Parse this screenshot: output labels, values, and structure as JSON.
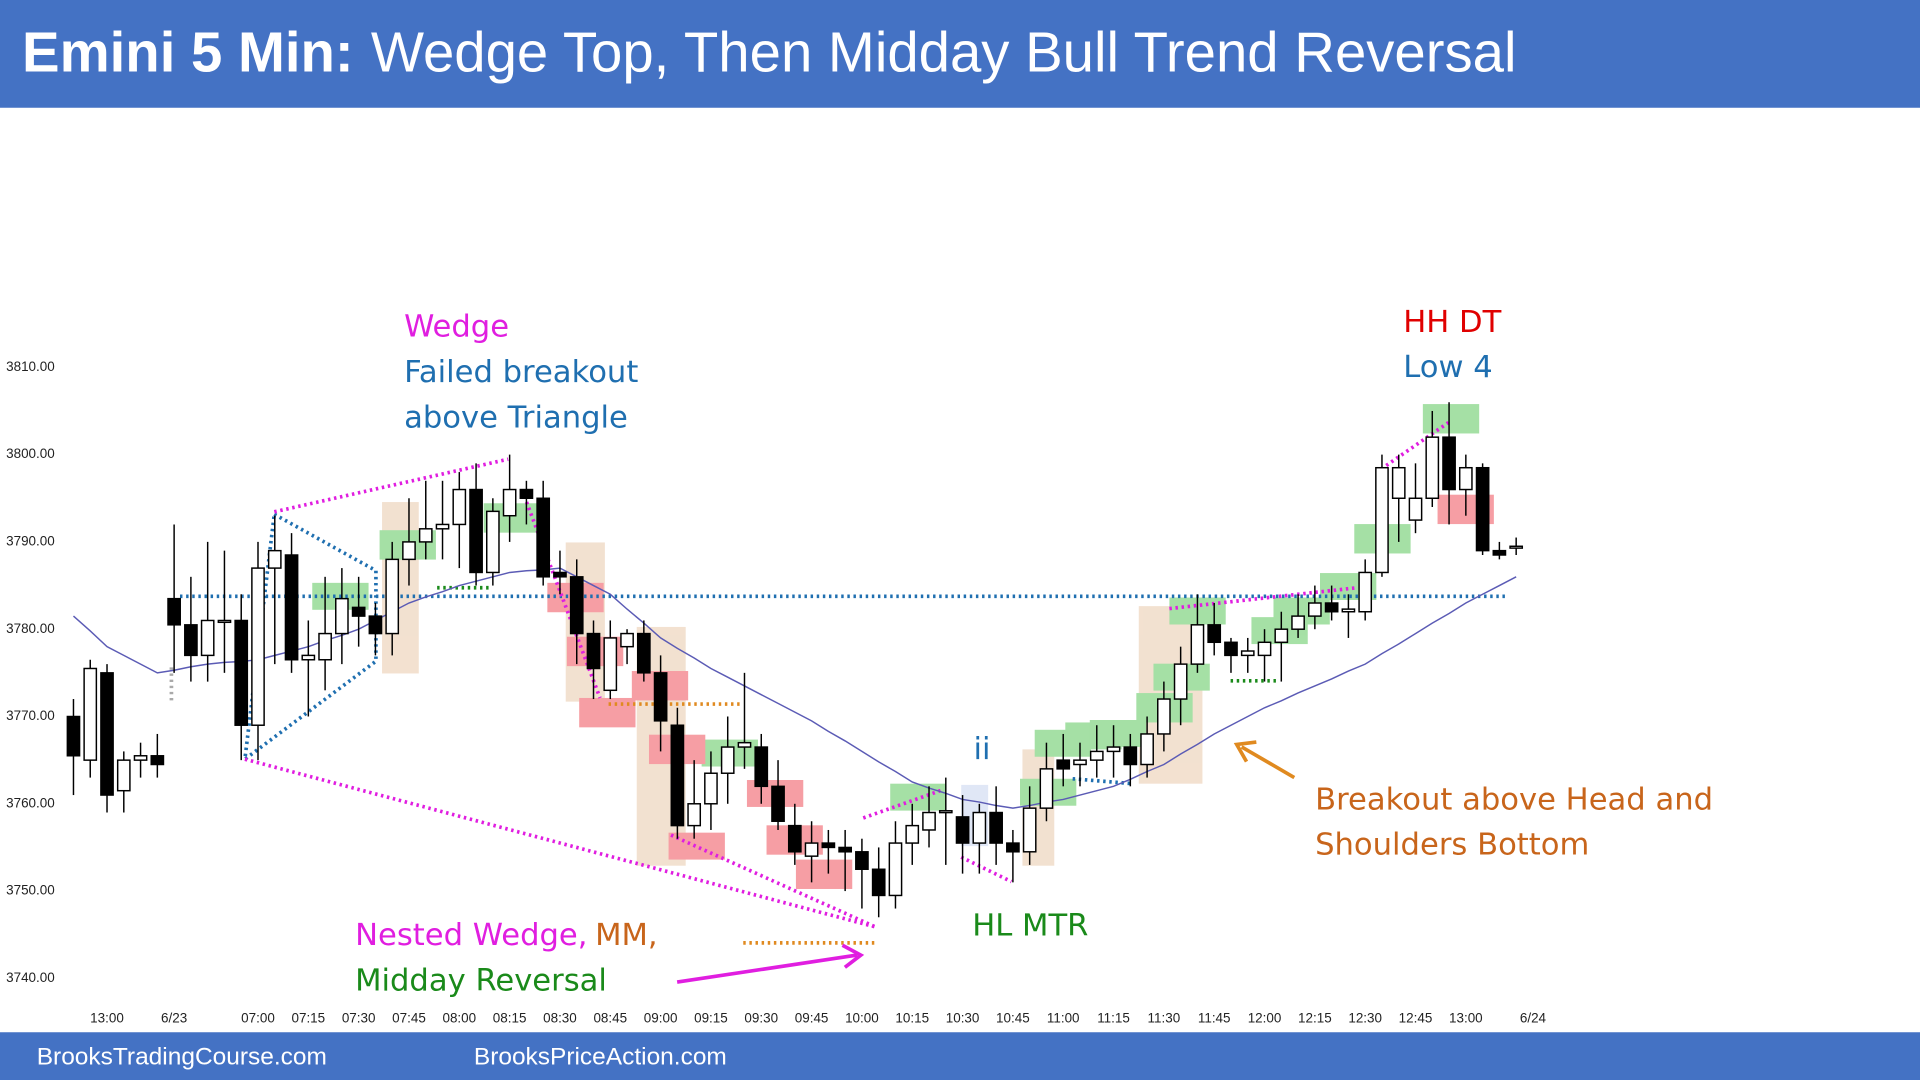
{
  "header": {
    "title_bold": "Emini 5 Min:",
    "title": "Wedge Top, Then Midday Bull Trend Reversal"
  },
  "footer": {
    "left": "BrooksTradingCourse.com",
    "right": "BrooksPriceAction.com"
  },
  "chart_data": {
    "type": "candlestick",
    "up_color": "#ffffff",
    "down_color": "#000000",
    "x": [
      0,
      1,
      2,
      3,
      4,
      5,
      6,
      7,
      8,
      9,
      10,
      11,
      12,
      13,
      14,
      15,
      16,
      17,
      18,
      19,
      20,
      21,
      22,
      23,
      24,
      25,
      26,
      27,
      28,
      29,
      30,
      31,
      32,
      33,
      34,
      35,
      36,
      37,
      38,
      39,
      40,
      41,
      42,
      43,
      44,
      45,
      46,
      47,
      48,
      49,
      50,
      51,
      52,
      53,
      54,
      55,
      56,
      57,
      58,
      59,
      60,
      61,
      62,
      63,
      64,
      65,
      66,
      67,
      68,
      69,
      70,
      71,
      72,
      73,
      74,
      75,
      76,
      77,
      78,
      79,
      80,
      81,
      82,
      83,
      84,
      85,
      86
    ],
    "open": [
      3770,
      3765,
      3775,
      3761.5,
      3765,
      3765.5,
      3783.5,
      3780.5,
      3777,
      3781,
      3781,
      3769,
      3787,
      3788.5,
      3776.5,
      3776.5,
      3779.5,
      3782.5,
      3781.5,
      3779.5,
      3788,
      3790,
      3791.5,
      3792,
      3796,
      3786.5,
      3793,
      3796,
      3795,
      3786.5,
      3786,
      3779.5,
      3773,
      3778,
      3779.5,
      3775,
      3769,
      3757.5,
      3760,
      3763.5,
      3766.5,
      3766.5,
      3762,
      3757.5,
      3754,
      3755.5,
      3755,
      3754.5,
      3752.5,
      3749.5,
      3755.5,
      3757,
      3759,
      3758.5,
      3755.5,
      3759,
      3755.5,
      3754.5,
      3759.5,
      3765,
      3764.5,
      3765,
      3766,
      3766.5,
      3764.5,
      3768,
      3772,
      3776,
      3780.5,
      3778.5,
      3777,
      3777,
      3778.5,
      3780,
      3781.5,
      3783,
      3782,
      3782,
      3786.5,
      3795,
      3792.5,
      3795,
      3802,
      3796,
      3798.5,
      3789,
      3789.5
    ],
    "high": [
      3772,
      3776.5,
      3776,
      3766,
      3767,
      3768,
      3792,
      3786,
      3790,
      3789,
      3784,
      3790,
      3793,
      3791,
      3781,
      3786,
      3787,
      3786,
      3783,
      3790,
      3795,
      3797,
      3797,
      3798,
      3799,
      3795,
      3800,
      3797,
      3797,
      3789,
      3788,
      3781,
      3781,
      3780,
      3781,
      3777,
      3771,
      3765,
      3766,
      3770,
      3775,
      3768,
      3765,
      3760,
      3758,
      3757,
      3757,
      3756,
      3755,
      3758,
      3760,
      3762,
      3763,
      3761,
      3760,
      3762,
      3757,
      3762,
      3767,
      3768,
      3767,
      3769,
      3769,
      3768,
      3770,
      3774,
      3778,
      3784,
      3783,
      3779,
      3779,
      3780,
      3782,
      3784,
      3785,
      3785,
      3784,
      3788,
      3800,
      3800,
      3799,
      3805,
      3806,
      3800,
      3799,
      3790,
      3790.5
    ],
    "low": [
      3761,
      3763,
      3759,
      3759,
      3763,
      3763,
      3775,
      3774,
      3774,
      3775,
      3765,
      3765,
      3776,
      3775,
      3770,
      3773,
      3776,
      3778,
      3777,
      3777,
      3785,
      3788,
      3788,
      3787,
      3785,
      3785,
      3790,
      3792,
      3785,
      3784,
      3776,
      3772,
      3772,
      3776,
      3774,
      3766,
      3756,
      3756,
      3757,
      3760,
      3764,
      3760,
      3757,
      3753,
      3751,
      3752,
      3750,
      3748,
      3747,
      3748,
      3753,
      3755,
      3753,
      3752,
      3752,
      3753,
      3751,
      3753,
      3758,
      3762,
      3762,
      3763,
      3763,
      3762,
      3763,
      3766,
      3769,
      3775,
      3777,
      3775,
      3775,
      3774,
      3774,
      3779,
      3780,
      3781,
      3779,
      3781,
      3786,
      3790,
      3791,
      3794,
      3792,
      3793,
      3788.5,
      3788,
      3788.5
    ],
    "close": [
      3765.5,
      3775.5,
      3761,
      3765,
      3765.5,
      3764.5,
      3780.5,
      3777,
      3781,
      3781,
      3769,
      3787,
      3789,
      3776.5,
      3777,
      3779.5,
      3783.5,
      3781.5,
      3779.5,
      3788,
      3790,
      3791.5,
      3792,
      3796,
      3786.5,
      3793.5,
      3796,
      3795,
      3786,
      3786,
      3779.5,
      3775.5,
      3779,
      3779.5,
      3775,
      3769.5,
      3757.5,
      3760,
      3763.5,
      3766.5,
      3767,
      3762,
      3758,
      3754.5,
      3755.5,
      3755,
      3754.5,
      3752.5,
      3749.5,
      3755.5,
      3757.5,
      3759,
      3759.2,
      3755.5,
      3759,
      3755.5,
      3754.5,
      3759.5,
      3764,
      3764,
      3765,
      3766,
      3766.5,
      3764.5,
      3768,
      3772,
      3776,
      3780.5,
      3778.5,
      3777,
      3777.5,
      3778.5,
      3780,
      3781.5,
      3783,
      3782,
      3782.3,
      3786.5,
      3798.5,
      3798.5,
      3795,
      3802,
      3796,
      3798.5,
      3789,
      3788.5,
      3789.5
    ],
    "ma": {
      "color": "#5b5bb5",
      "values": [
        3781.5,
        3779.8,
        3778,
        3777,
        3776,
        3775,
        3775.3,
        3775.7,
        3776,
        3776.2,
        3776.3,
        3776.5,
        3777,
        3777.5,
        3778,
        3778.7,
        3779.3,
        3780,
        3781,
        3782,
        3783,
        3783.7,
        3784.3,
        3785,
        3785.5,
        3786,
        3786.5,
        3786.7,
        3786.8,
        3787,
        3786,
        3785,
        3784,
        3782.3,
        3780.7,
        3779,
        3777.8,
        3776.7,
        3775.5,
        3774.5,
        3773.5,
        3772.5,
        3771.5,
        3770.5,
        3769.5,
        3768.3,
        3767.2,
        3766,
        3764.8,
        3763.7,
        3762.5,
        3761.8,
        3761.2,
        3760.5,
        3760.2,
        3759.8,
        3759.5,
        3759.8,
        3760.2,
        3760.5,
        3761,
        3761.5,
        3762,
        3762.8,
        3763.7,
        3764.5,
        3765.7,
        3766.8,
        3768,
        3769,
        3770,
        3771,
        3771.8,
        3772.7,
        3773.5,
        3774.3,
        3775.2,
        3776,
        3777.2,
        3778.3,
        3779.5,
        3780.7,
        3781.8,
        3783,
        3784,
        3785,
        3786
      ]
    },
    "ylim": [
      3735,
      3830
    ],
    "yticks": [
      {
        "value": 3740,
        "label": "3740.00"
      },
      {
        "value": 3750,
        "label": "3750.00"
      },
      {
        "value": 3760,
        "label": "3760.00"
      },
      {
        "value": 3770,
        "label": "3770.00"
      },
      {
        "value": 3780,
        "label": "3780.00"
      },
      {
        "value": 3790,
        "label": "3790.00"
      },
      {
        "value": 3800,
        "label": "3800.00"
      },
      {
        "value": 3810,
        "label": "3810.00"
      }
    ],
    "xlim": [
      -2,
      89
    ],
    "xticks": [
      {
        "value": 2,
        "label": "13:00"
      },
      {
        "value": 6,
        "label": "6/23"
      },
      {
        "value": 11,
        "label": "07:00"
      },
      {
        "value": 14,
        "label": "07:15"
      },
      {
        "value": 17,
        "label": "07:30"
      },
      {
        "value": 20,
        "label": "07:45"
      },
      {
        "value": 23,
        "label": "08:00"
      },
      {
        "value": 26,
        "label": "08:15"
      },
      {
        "value": 29,
        "label": "08:30"
      },
      {
        "value": 32,
        "label": "08:45"
      },
      {
        "value": 35,
        "label": "09:00"
      },
      {
        "value": 38,
        "label": "09:15"
      },
      {
        "value": 41,
        "label": "09:30"
      },
      {
        "value": 44,
        "label": "09:45"
      },
      {
        "value": 47,
        "label": "10:00"
      },
      {
        "value": 50,
        "label": "10:15"
      },
      {
        "value": 53,
        "label": "10:30"
      },
      {
        "value": 56,
        "label": "10:45"
      },
      {
        "value": 59,
        "label": "11:00"
      },
      {
        "value": 62,
        "label": "11:15"
      },
      {
        "value": 65,
        "label": "11:30"
      },
      {
        "value": 68,
        "label": "11:45"
      },
      {
        "value": 71,
        "label": "12:00"
      },
      {
        "value": 74,
        "label": "12:15"
      },
      {
        "value": 77,
        "label": "12:30"
      },
      {
        "value": 80,
        "label": "12:45"
      },
      {
        "value": 83,
        "label": "13:00"
      },
      {
        "value": 87,
        "label": "6/24"
      }
    ],
    "annotations": [
      {
        "text": "Wedge",
        "color": "#e01ee0"
      },
      {
        "text": "Failed breakout",
        "color": "#1f6fb0"
      },
      {
        "text": "above Triangle",
        "color": "#1f6fb0"
      },
      {
        "text": "HH DT",
        "color": "#e00000"
      },
      {
        "text": "Low 4",
        "color": "#1f6fb0"
      },
      {
        "text": "ii",
        "color": "#1f6fb0"
      },
      {
        "text": "Breakout above Head and",
        "color": "#c8651b"
      },
      {
        "text": "Shoulders Bottom",
        "color": "#c8651b"
      },
      {
        "text": "HL MTR",
        "color": "#1a8a1a"
      },
      {
        "text": "Nested Wedge,",
        "color": "#e01ee0"
      },
      {
        "text": "MM,",
        "color": "#c8651b"
      },
      {
        "text": "Midday Reversal",
        "color": "#1a8a1a"
      }
    ]
  }
}
